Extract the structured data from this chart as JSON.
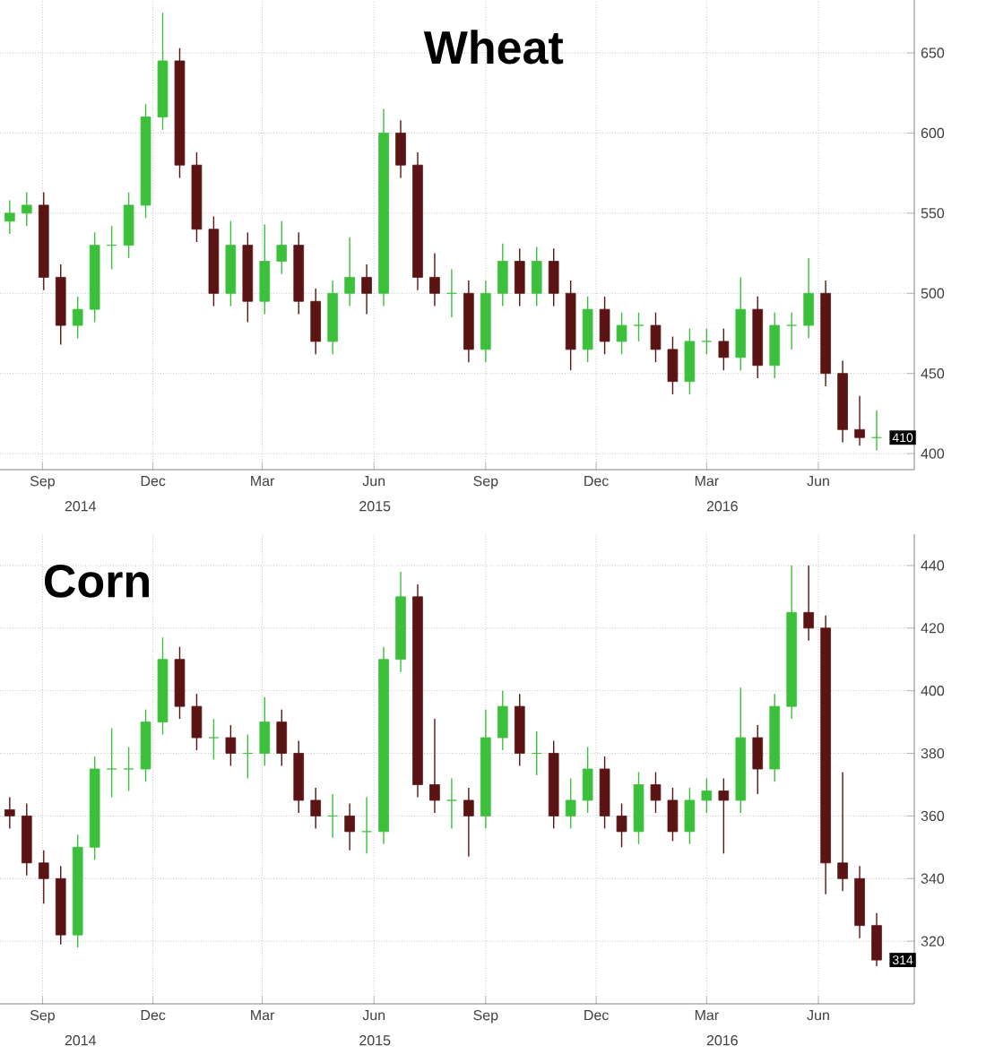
{
  "chart_data": [
    {
      "type": "candlestick",
      "title": "Wheat",
      "grid": true,
      "x": [
        "2014-08-05",
        "2014-08-19",
        "2014-09-02",
        "2014-09-16",
        "2014-09-30",
        "2014-10-14",
        "2014-10-28",
        "2014-11-11",
        "2014-11-25",
        "2014-12-09",
        "2014-12-23",
        "2015-01-06",
        "2015-01-20",
        "2015-02-03",
        "2015-02-17",
        "2015-03-03",
        "2015-03-17",
        "2015-03-31",
        "2015-04-14",
        "2015-04-28",
        "2015-05-12",
        "2015-05-26",
        "2015-06-09",
        "2015-06-23",
        "2015-07-07",
        "2015-07-21",
        "2015-08-04",
        "2015-08-18",
        "2015-09-01",
        "2015-09-15",
        "2015-09-29",
        "2015-10-13",
        "2015-10-27",
        "2015-11-10",
        "2015-11-24",
        "2015-12-08",
        "2015-12-22",
        "2016-01-05",
        "2016-01-19",
        "2016-02-02",
        "2016-02-16",
        "2016-03-01",
        "2016-03-15",
        "2016-03-29",
        "2016-04-12",
        "2016-04-26",
        "2016-05-10",
        "2016-05-24",
        "2016-06-07",
        "2016-06-21",
        "2016-07-05",
        "2016-07-19"
      ],
      "ohlc": [
        [
          545,
          558,
          537,
          550
        ],
        [
          550,
          563,
          542,
          555
        ],
        [
          555,
          563,
          502,
          510
        ],
        [
          510,
          518,
          468,
          480
        ],
        [
          480,
          498,
          472,
          490
        ],
        [
          490,
          538,
          482,
          530
        ],
        [
          530,
          542,
          515,
          530
        ],
        [
          530,
          563,
          522,
          555
        ],
        [
          555,
          618,
          547,
          610
        ],
        [
          610,
          675,
          602,
          645
        ],
        [
          645,
          653,
          572,
          580
        ],
        [
          580,
          588,
          532,
          540
        ],
        [
          540,
          548,
          492,
          500
        ],
        [
          500,
          545,
          492,
          530
        ],
        [
          530,
          538,
          482,
          495
        ],
        [
          495,
          543,
          487,
          520
        ],
        [
          520,
          545,
          512,
          530
        ],
        [
          530,
          538,
          487,
          495
        ],
        [
          495,
          503,
          462,
          470
        ],
        [
          470,
          508,
          462,
          500
        ],
        [
          500,
          535,
          492,
          510
        ],
        [
          510,
          518,
          487,
          500
        ],
        [
          500,
          615,
          492,
          600
        ],
        [
          600,
          608,
          572,
          580
        ],
        [
          580,
          588,
          502,
          510
        ],
        [
          510,
          525,
          492,
          500
        ],
        [
          500,
          515,
          485,
          500
        ],
        [
          500,
          508,
          457,
          465
        ],
        [
          465,
          508,
          457,
          500
        ],
        [
          500,
          531,
          492,
          520
        ],
        [
          520,
          528,
          492,
          500
        ],
        [
          500,
          529,
          492,
          520
        ],
        [
          520,
          528,
          492,
          500
        ],
        [
          500,
          508,
          452,
          465
        ],
        [
          465,
          498,
          457,
          490
        ],
        [
          490,
          498,
          462,
          470
        ],
        [
          470,
          488,
          462,
          480
        ],
        [
          480,
          488,
          470,
          480
        ],
        [
          480,
          488,
          457,
          465
        ],
        [
          465,
          473,
          437,
          445
        ],
        [
          445,
          478,
          437,
          470
        ],
        [
          470,
          478,
          462,
          470
        ],
        [
          470,
          478,
          452,
          460
        ],
        [
          460,
          510,
          452,
          490
        ],
        [
          490,
          498,
          447,
          455
        ],
        [
          455,
          488,
          447,
          480
        ],
        [
          480,
          488,
          465,
          480
        ],
        [
          480,
          522,
          472,
          500
        ],
        [
          500,
          508,
          442,
          450
        ],
        [
          450,
          458,
          407,
          415
        ],
        [
          415,
          436,
          405,
          410
        ],
        [
          410,
          427,
          402,
          410
        ]
      ],
      "xlim": [
        "2014-07-28",
        "2016-08-19"
      ],
      "ylim": [
        390,
        683
      ],
      "xticks": [
        {
          "value": "2014-09-01",
          "label": "Sep"
        },
        {
          "value": "2014-12-01",
          "label": "Dec"
        },
        {
          "value": "2015-03-01",
          "label": "Mar"
        },
        {
          "value": "2015-06-01",
          "label": "Jun"
        },
        {
          "value": "2015-09-01",
          "label": "Sep"
        },
        {
          "value": "2015-12-01",
          "label": "Dec"
        },
        {
          "value": "2016-03-01",
          "label": "Mar"
        },
        {
          "value": "2016-06-01",
          "label": "Jun"
        }
      ],
      "yticks": [
        400,
        450,
        500,
        550,
        600,
        650
      ],
      "annotations": [
        {
          "text": "410",
          "x": "2016-07-19",
          "y": 410
        },
        "2014",
        "2015",
        "2016"
      ]
    },
    {
      "type": "candlestick",
      "title": "Corn",
      "grid": true,
      "x": [
        "2014-08-05",
        "2014-08-19",
        "2014-09-02",
        "2014-09-16",
        "2014-09-30",
        "2014-10-14",
        "2014-10-28",
        "2014-11-11",
        "2014-11-25",
        "2014-12-09",
        "2014-12-23",
        "2015-01-06",
        "2015-01-20",
        "2015-02-03",
        "2015-02-17",
        "2015-03-03",
        "2015-03-17",
        "2015-03-31",
        "2015-04-14",
        "2015-04-28",
        "2015-05-12",
        "2015-05-26",
        "2015-06-09",
        "2015-06-23",
        "2015-07-07",
        "2015-07-21",
        "2015-08-04",
        "2015-08-18",
        "2015-09-01",
        "2015-09-15",
        "2015-09-29",
        "2015-10-13",
        "2015-10-27",
        "2015-11-10",
        "2015-11-24",
        "2015-12-08",
        "2015-12-22",
        "2016-01-05",
        "2016-01-19",
        "2016-02-02",
        "2016-02-16",
        "2016-03-01",
        "2016-03-15",
        "2016-03-29",
        "2016-04-12",
        "2016-04-26",
        "2016-05-10",
        "2016-05-24",
        "2016-06-07",
        "2016-06-21",
        "2016-07-05",
        "2016-07-19"
      ],
      "ohlc": [
        [
          362,
          366,
          356,
          360
        ],
        [
          360,
          364,
          341,
          345
        ],
        [
          345,
          349,
          332,
          340
        ],
        [
          340,
          344,
          319,
          322
        ],
        [
          322,
          354,
          318,
          350
        ],
        [
          350,
          379,
          346,
          375
        ],
        [
          375,
          388,
          366,
          375
        ],
        [
          375,
          382,
          368,
          375
        ],
        [
          375,
          394,
          371,
          390
        ],
        [
          390,
          417,
          386,
          410
        ],
        [
          410,
          414,
          391,
          395
        ],
        [
          395,
          399,
          381,
          385
        ],
        [
          385,
          391,
          378,
          385
        ],
        [
          385,
          389,
          376,
          380
        ],
        [
          380,
          386,
          372,
          380
        ],
        [
          380,
          398,
          376,
          390
        ],
        [
          390,
          394,
          376,
          380
        ],
        [
          380,
          384,
          361,
          365
        ],
        [
          365,
          369,
          356,
          360
        ],
        [
          360,
          367,
          353,
          360
        ],
        [
          360,
          364,
          349,
          355
        ],
        [
          355,
          366,
          348,
          355
        ],
        [
          355,
          414,
          351,
          410
        ],
        [
          410,
          438,
          406,
          430
        ],
        [
          430,
          434,
          366,
          370
        ],
        [
          370,
          391,
          361,
          365
        ],
        [
          365,
          372,
          356,
          365
        ],
        [
          365,
          369,
          347,
          360
        ],
        [
          360,
          394,
          356,
          385
        ],
        [
          385,
          400,
          381,
          395
        ],
        [
          395,
          399,
          376,
          380
        ],
        [
          380,
          387,
          373,
          380
        ],
        [
          380,
          384,
          356,
          360
        ],
        [
          360,
          372,
          356,
          365
        ],
        [
          365,
          382,
          361,
          375
        ],
        [
          375,
          379,
          356,
          360
        ],
        [
          360,
          364,
          350,
          355
        ],
        [
          355,
          374,
          351,
          370
        ],
        [
          370,
          374,
          361,
          365
        ],
        [
          365,
          369,
          352,
          355
        ],
        [
          355,
          369,
          351,
          365
        ],
        [
          365,
          372,
          361,
          368
        ],
        [
          368,
          372,
          348,
          365
        ],
        [
          365,
          401,
          361,
          385
        ],
        [
          385,
          389,
          367,
          375
        ],
        [
          375,
          399,
          371,
          395
        ],
        [
          395,
          440,
          391,
          425
        ],
        [
          425,
          440,
          416,
          420
        ],
        [
          420,
          424,
          335,
          345
        ],
        [
          345,
          374,
          336,
          340
        ],
        [
          340,
          344,
          321,
          325
        ],
        [
          325,
          329,
          312,
          314
        ]
      ],
      "xlim": [
        "2014-07-28",
        "2016-08-19"
      ],
      "ylim": [
        300,
        450
      ],
      "xticks": [
        {
          "value": "2014-09-01",
          "label": "Sep"
        },
        {
          "value": "2014-12-01",
          "label": "Dec"
        },
        {
          "value": "2015-03-01",
          "label": "Mar"
        },
        {
          "value": "2015-06-01",
          "label": "Jun"
        },
        {
          "value": "2015-09-01",
          "label": "Sep"
        },
        {
          "value": "2015-12-01",
          "label": "Dec"
        },
        {
          "value": "2016-03-01",
          "label": "Mar"
        },
        {
          "value": "2016-06-01",
          "label": "Jun"
        }
      ],
      "yticks": [
        320,
        340,
        360,
        380,
        400,
        420,
        440
      ],
      "annotations": [
        {
          "text": "314",
          "x": "2016-07-19",
          "y": 314
        },
        "2014",
        "2015",
        "2016"
      ]
    }
  ]
}
